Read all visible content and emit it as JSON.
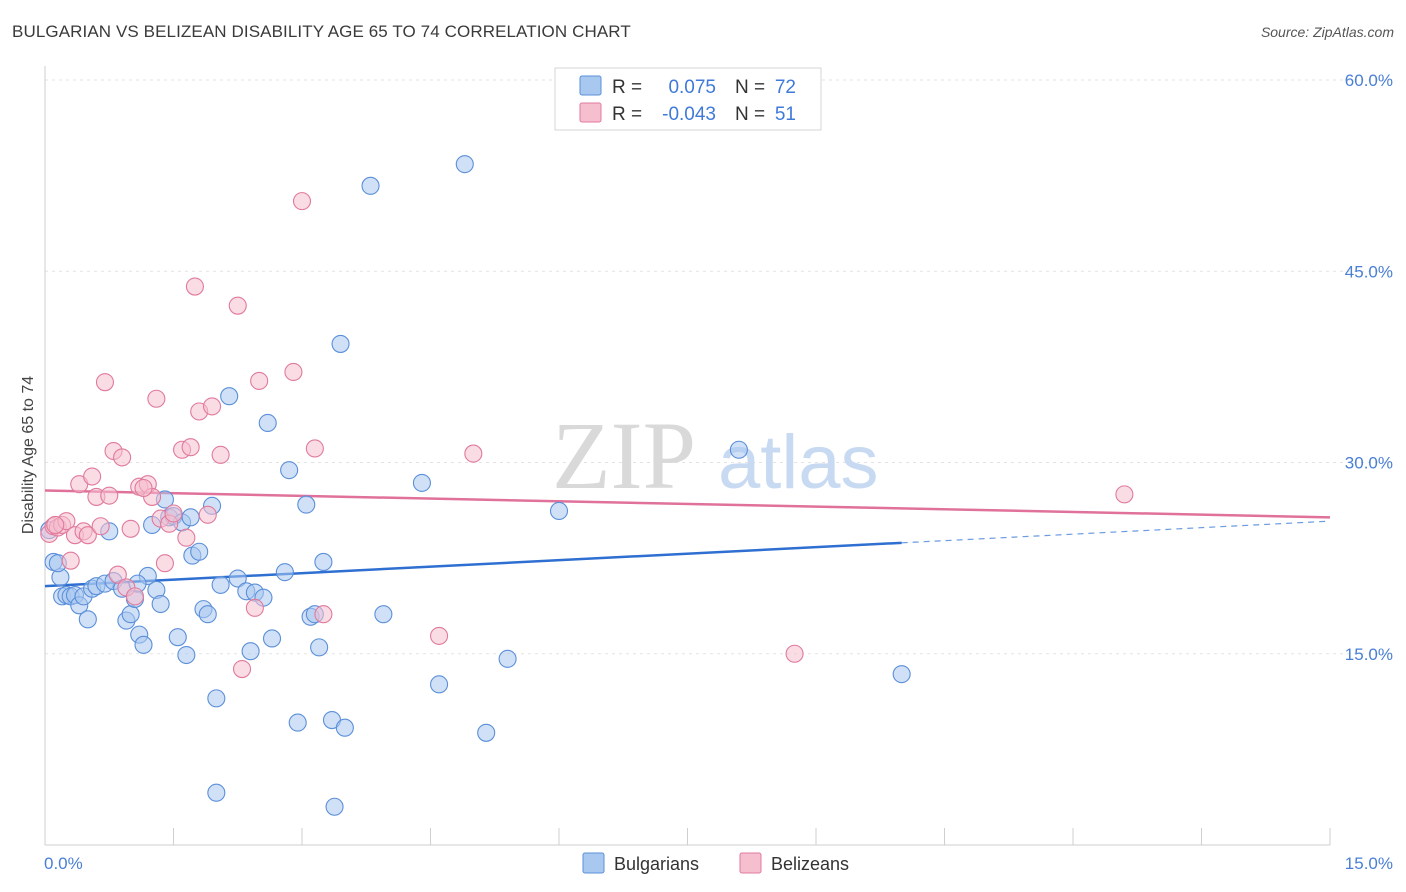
{
  "title": "BULGARIAN VS BELIZEAN DISABILITY AGE 65 TO 74 CORRELATION CHART",
  "source": "Source: ZipAtlas.com",
  "watermark": {
    "zip": "ZIP",
    "atlas": "atlas"
  },
  "legend": {
    "rows": [
      {
        "r_label": "R =",
        "r_value": "0.075",
        "n_label": "N =",
        "n_value": "72",
        "color": "#a9c8f0",
        "stroke": "#5b8fd9"
      },
      {
        "r_label": "R =",
        "r_value": "-0.043",
        "n_label": "N =",
        "n_value": "51",
        "color": "#f6bfd0",
        "stroke": "#e07a9c"
      }
    ]
  },
  "bottom_legend": [
    {
      "label": "Bulgarians",
      "color": "#a9c8f0",
      "stroke": "#5b8fd9"
    },
    {
      "label": "Belizeans",
      "color": "#f6bfd0",
      "stroke": "#e07a9c"
    }
  ],
  "chart_data": {
    "type": "scatter",
    "title": "BULGARIAN VS BELIZEAN DISABILITY AGE 65 TO 74 CORRELATION CHART",
    "xlabel": "",
    "ylabel": "Disability Age 65 to 74",
    "xlim": [
      0,
      15
    ],
    "ylim": [
      0,
      60
    ],
    "x_tick_labels": [
      "0.0%",
      "15.0%"
    ],
    "y_ticks": [
      15,
      30,
      45,
      60
    ],
    "y_tick_labels": [
      "15.0%",
      "30.0%",
      "45.0%",
      "60.0%"
    ],
    "series": [
      {
        "name": "Bulgarians",
        "color": "#5b8fd9",
        "fill": "#a9c8f0",
        "trend": {
          "x0": 0.0,
          "y0": 20.3,
          "x1": 10.0,
          "y1": 23.7,
          "dashed_to_x": 15.0,
          "dashed_to_y": 25.4
        },
        "points": [
          [
            0.05,
            24.7
          ],
          [
            0.1,
            22.2
          ],
          [
            0.18,
            21.0
          ],
          [
            0.2,
            19.5
          ],
          [
            0.25,
            19.6
          ],
          [
            0.3,
            19.5
          ],
          [
            0.35,
            19.6
          ],
          [
            0.4,
            18.8
          ],
          [
            0.45,
            19.5
          ],
          [
            0.5,
            17.7
          ],
          [
            0.55,
            20.1
          ],
          [
            0.6,
            20.3
          ],
          [
            0.7,
            20.5
          ],
          [
            0.75,
            24.6
          ],
          [
            0.8,
            20.7
          ],
          [
            0.9,
            20.1
          ],
          [
            0.95,
            17.6
          ],
          [
            1.0,
            18.1
          ],
          [
            1.05,
            19.3
          ],
          [
            1.1,
            16.5
          ],
          [
            1.15,
            15.7
          ],
          [
            1.2,
            21.1
          ],
          [
            1.25,
            25.1
          ],
          [
            1.3,
            20.0
          ],
          [
            1.35,
            18.9
          ],
          [
            1.4,
            27.1
          ],
          [
            1.45,
            25.7
          ],
          [
            1.5,
            25.8
          ],
          [
            1.55,
            16.3
          ],
          [
            1.6,
            25.3
          ],
          [
            1.65,
            14.9
          ],
          [
            1.7,
            25.7
          ],
          [
            1.72,
            22.7
          ],
          [
            1.8,
            23.0
          ],
          [
            1.85,
            18.5
          ],
          [
            1.9,
            18.1
          ],
          [
            1.95,
            26.6
          ],
          [
            2.0,
            11.5
          ],
          [
            2.0,
            4.1
          ],
          [
            2.05,
            20.4
          ],
          [
            2.15,
            35.2
          ],
          [
            2.25,
            20.9
          ],
          [
            2.35,
            19.9
          ],
          [
            2.4,
            15.2
          ],
          [
            2.45,
            19.8
          ],
          [
            2.55,
            19.4
          ],
          [
            2.6,
            33.1
          ],
          [
            2.65,
            16.2
          ],
          [
            2.8,
            21.4
          ],
          [
            2.85,
            29.4
          ],
          [
            2.95,
            9.6
          ],
          [
            3.05,
            26.7
          ],
          [
            3.1,
            17.9
          ],
          [
            3.15,
            18.1
          ],
          [
            3.2,
            15.5
          ],
          [
            3.25,
            22.2
          ],
          [
            3.35,
            9.8
          ],
          [
            3.38,
            3.0
          ],
          [
            3.45,
            39.3
          ],
          [
            3.5,
            9.2
          ],
          [
            3.8,
            51.7
          ],
          [
            3.95,
            18.1
          ],
          [
            4.4,
            28.4
          ],
          [
            4.6,
            12.6
          ],
          [
            4.9,
            53.4
          ],
          [
            5.15,
            8.8
          ],
          [
            5.4,
            14.6
          ],
          [
            6.0,
            26.2
          ],
          [
            8.1,
            31.0
          ],
          [
            10.0,
            13.4
          ],
          [
            0.15,
            22.1
          ],
          [
            1.08,
            20.5
          ]
        ]
      },
      {
        "name": "Belizeans",
        "color": "#e07a9c",
        "fill": "#f6bfd0",
        "trend": {
          "x0": 0.0,
          "y0": 27.8,
          "x1": 15.0,
          "y1": 25.7
        },
        "points": [
          [
            0.05,
            24.4
          ],
          [
            0.1,
            25.0
          ],
          [
            0.15,
            24.9
          ],
          [
            0.2,
            25.1
          ],
          [
            0.25,
            25.4
          ],
          [
            0.3,
            22.3
          ],
          [
            0.35,
            24.3
          ],
          [
            0.4,
            28.3
          ],
          [
            0.45,
            24.6
          ],
          [
            0.5,
            24.3
          ],
          [
            0.55,
            28.9
          ],
          [
            0.6,
            27.3
          ],
          [
            0.7,
            36.3
          ],
          [
            0.75,
            27.4
          ],
          [
            0.8,
            30.9
          ],
          [
            0.85,
            21.2
          ],
          [
            0.9,
            30.4
          ],
          [
            0.95,
            20.2
          ],
          [
            1.0,
            24.8
          ],
          [
            1.05,
            19.5
          ],
          [
            1.1,
            28.1
          ],
          [
            1.2,
            28.3
          ],
          [
            1.25,
            27.3
          ],
          [
            1.3,
            35.0
          ],
          [
            1.35,
            25.6
          ],
          [
            1.4,
            22.1
          ],
          [
            1.45,
            25.2
          ],
          [
            1.5,
            26.0
          ],
          [
            1.6,
            31.0
          ],
          [
            1.65,
            24.1
          ],
          [
            1.7,
            31.2
          ],
          [
            1.75,
            43.8
          ],
          [
            1.8,
            34.0
          ],
          [
            1.9,
            25.9
          ],
          [
            1.95,
            34.4
          ],
          [
            2.05,
            30.6
          ],
          [
            2.25,
            42.3
          ],
          [
            2.3,
            13.8
          ],
          [
            2.45,
            18.6
          ],
          [
            2.5,
            36.4
          ],
          [
            2.9,
            37.1
          ],
          [
            3.0,
            50.5
          ],
          [
            3.15,
            31.1
          ],
          [
            3.25,
            18.1
          ],
          [
            4.6,
            16.4
          ],
          [
            5.0,
            30.7
          ],
          [
            8.75,
            15.0
          ],
          [
            12.6,
            27.5
          ],
          [
            1.15,
            28.0
          ],
          [
            0.65,
            25.0
          ],
          [
            0.12,
            25.1
          ]
        ]
      }
    ]
  }
}
